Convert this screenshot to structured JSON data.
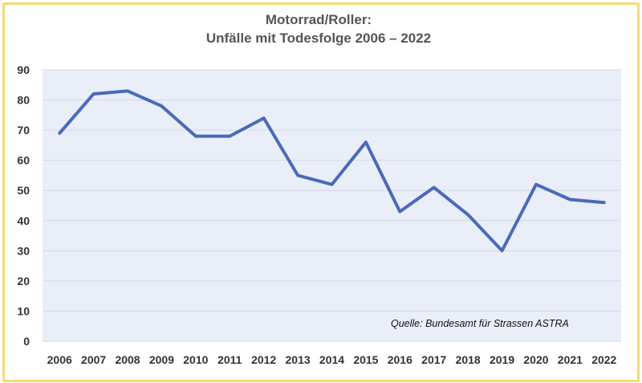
{
  "chart_data": {
    "type": "line",
    "title": "Motorrad/Roller:",
    "subtitle": "Unfälle mit Todesfolge 2006 – 2022",
    "xlabel": "",
    "ylabel": "",
    "categories": [
      "2006",
      "2007",
      "2008",
      "2009",
      "2010",
      "2011",
      "2012",
      "2013",
      "2014",
      "2015",
      "2016",
      "2017",
      "2018",
      "2019",
      "2020",
      "2021",
      "2022"
    ],
    "series": [
      {
        "values": [
          69,
          82,
          83,
          78,
          68,
          68,
          74,
          55,
          52,
          66,
          43,
          51,
          42,
          30,
          52,
          47,
          46
        ]
      }
    ],
    "ylim": [
      0,
      90
    ],
    "yticks": [
      "0",
      "10",
      "20",
      "30",
      "40",
      "50",
      "60",
      "70",
      "80",
      "90"
    ],
    "grid": true,
    "legend": "none",
    "annotation": "Quelle: Bundesamt für Strassen ASTRA",
    "colors": {
      "line": "#4a6ab8",
      "plot_background": "#eaeef8",
      "gridline": "#d4d8e6",
      "frame_border": "#f5da72",
      "text": "#333333"
    }
  }
}
